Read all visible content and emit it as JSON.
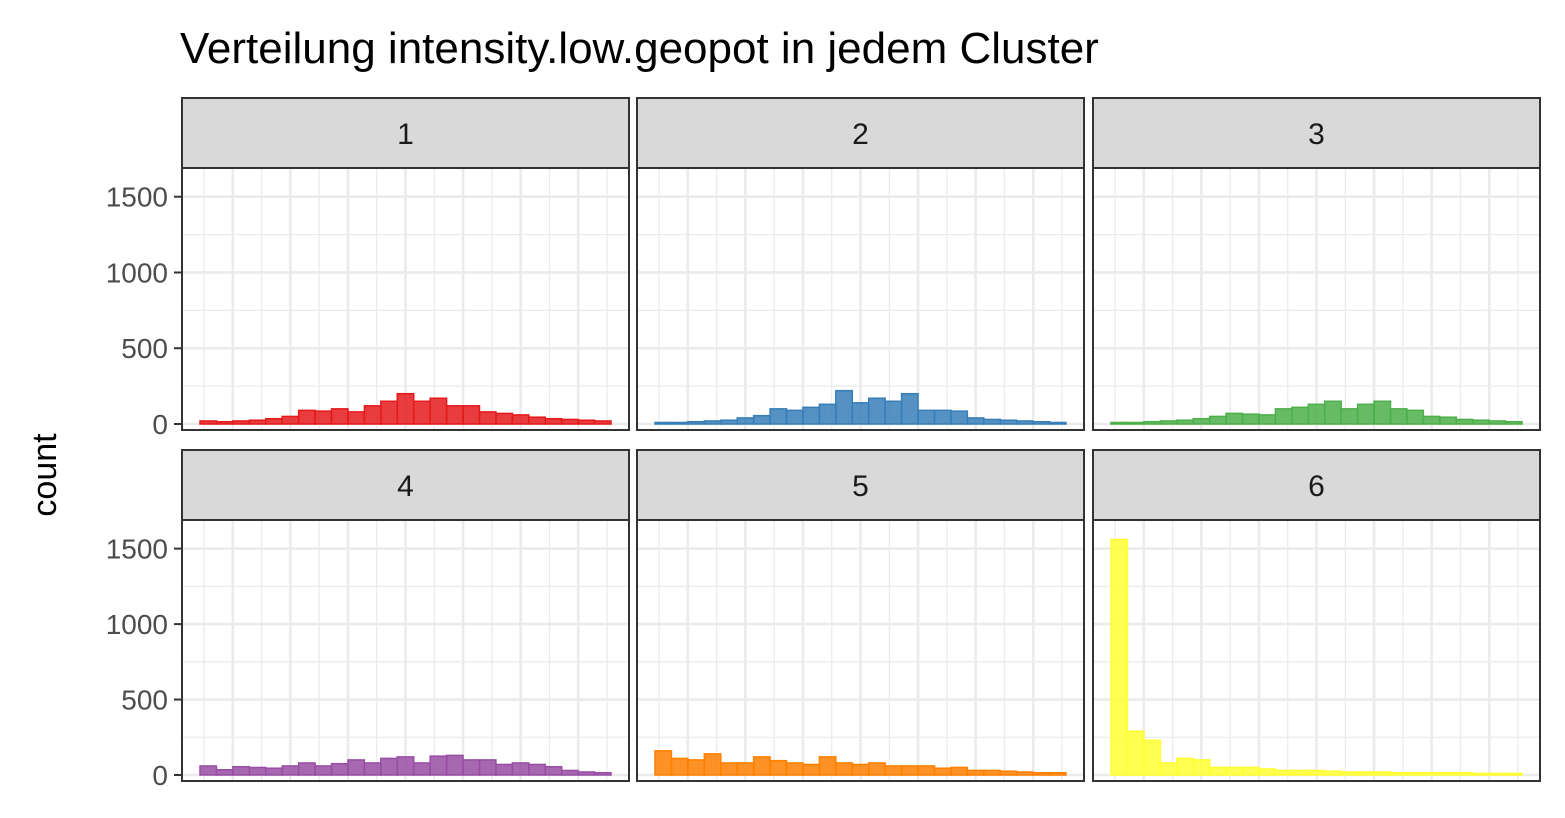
{
  "chart_data": {
    "type": "bar",
    "title": "Verteilung intensity.low.geopot in jedem Cluster",
    "xlabel": "",
    "ylabel": "count",
    "ylim": [
      0,
      1650
    ],
    "yticks": [
      0,
      500,
      1000,
      1500
    ],
    "grid": true,
    "facets": [
      {
        "label": "1",
        "color": "#e41a1c",
        "values": [
          20,
          15,
          20,
          25,
          35,
          50,
          90,
          85,
          100,
          80,
          120,
          150,
          200,
          150,
          170,
          120,
          120,
          80,
          70,
          60,
          45,
          35,
          30,
          25,
          20
        ]
      },
      {
        "label": "2",
        "color": "#377eb8",
        "values": [
          10,
          10,
          15,
          20,
          25,
          40,
          55,
          100,
          90,
          110,
          130,
          220,
          140,
          170,
          150,
          200,
          90,
          90,
          85,
          40,
          30,
          25,
          20,
          15,
          10
        ]
      },
      {
        "label": "3",
        "color": "#4daf4a",
        "values": [
          10,
          10,
          15,
          20,
          25,
          35,
          50,
          70,
          65,
          60,
          100,
          110,
          130,
          150,
          100,
          130,
          150,
          100,
          90,
          50,
          45,
          30,
          25,
          20,
          15
        ]
      },
      {
        "label": "4",
        "color": "#984ea3",
        "values": [
          60,
          35,
          55,
          50,
          45,
          60,
          80,
          60,
          75,
          100,
          80,
          110,
          120,
          80,
          125,
          130,
          100,
          100,
          70,
          80,
          70,
          55,
          30,
          20,
          15
        ]
      },
      {
        "label": "5",
        "color": "#ff7f00",
        "values": [
          160,
          110,
          100,
          140,
          80,
          80,
          120,
          95,
          80,
          70,
          120,
          80,
          70,
          80,
          60,
          60,
          60,
          45,
          50,
          30,
          30,
          25,
          20,
          15,
          15
        ]
      },
      {
        "label": "6",
        "color": "#ffff33",
        "values": [
          1560,
          290,
          230,
          80,
          110,
          100,
          50,
          50,
          50,
          40,
          30,
          30,
          30,
          25,
          20,
          20,
          20,
          15,
          15,
          15,
          15,
          15,
          10,
          10,
          10
        ]
      }
    ]
  }
}
